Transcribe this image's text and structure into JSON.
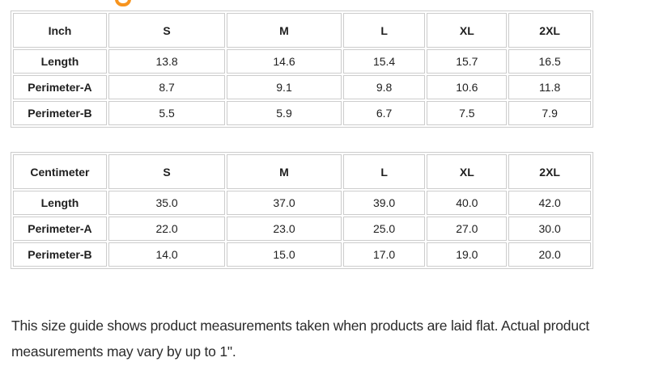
{
  "heading": {
    "clipped_glyph": "partial orange heading letter clipped at top edge"
  },
  "colors": {
    "accent_orange": "#f7941e",
    "table_border": "#cccccc",
    "table_text": "#1f1f1f",
    "note_text": "#2b2b2b",
    "background": "#ffffff"
  },
  "tables": [
    {
      "unit_label": "Inch",
      "size_headers": [
        "S",
        "M",
        "L",
        "XL",
        "2XL"
      ],
      "rows": [
        {
          "label": "Length",
          "values": [
            "13.8",
            "14.6",
            "15.4",
            "15.7",
            "16.5"
          ]
        },
        {
          "label": "Perimeter-A",
          "values": [
            "8.7",
            "9.1",
            "9.8",
            "10.6",
            "11.8"
          ]
        },
        {
          "label": "Perimeter-B",
          "values": [
            "5.5",
            "5.9",
            "6.7",
            "7.5",
            "7.9"
          ]
        }
      ]
    },
    {
      "unit_label": "Centimeter",
      "size_headers": [
        "S",
        "M",
        "L",
        "XL",
        "2XL"
      ],
      "rows": [
        {
          "label": "Length",
          "values": [
            "35.0",
            "37.0",
            "39.0",
            "40.0",
            "42.0"
          ]
        },
        {
          "label": "Perimeter-A",
          "values": [
            "22.0",
            "23.0",
            "25.0",
            "27.0",
            "30.0"
          ]
        },
        {
          "label": "Perimeter-B",
          "values": [
            "14.0",
            "15.0",
            "17.0",
            "19.0",
            "20.0"
          ]
        }
      ]
    }
  ],
  "footer": {
    "note_lines": [
      "This size guide shows product measurements taken when products are laid flat. Actual product",
      "measurements may vary by up to 1\"."
    ]
  }
}
